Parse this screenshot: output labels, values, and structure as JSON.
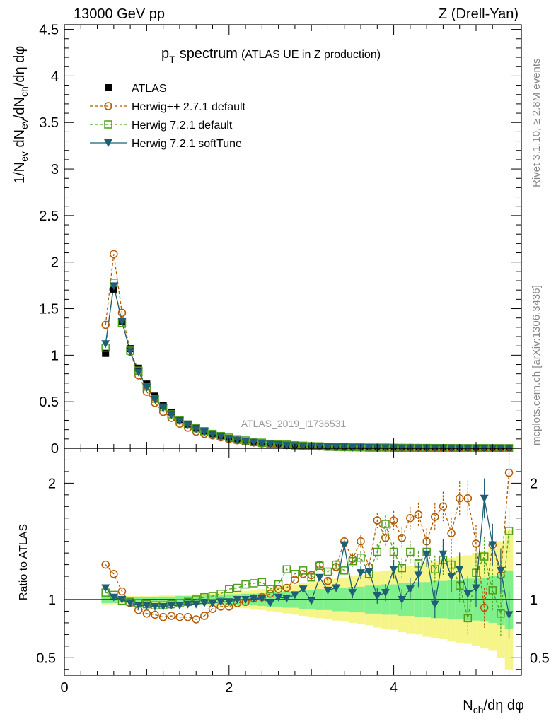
{
  "header": {
    "energy_label": "13000 GeV pp",
    "process_label": "Z (Drell-Yan)"
  },
  "side_labels": {
    "rivet": "Rivet 3.1.10, ≥ 2.8M events",
    "mcplots": "mcplots.cern.ch [arXiv:1306.3436]"
  },
  "analysis_label": "ATLAS_2019_I1736531",
  "colors": {
    "data": "#000000",
    "herwigpp": "#b35900",
    "herwig721": "#4d9f1a",
    "softtune": "#1f5f75",
    "band_inner": "#80f08c",
    "band_outer": "#f5f58a"
  },
  "chart_data": [
    {
      "type": "scatter",
      "panel": "main",
      "title": "p_T spectrum (ATLAS UE in Z production)",
      "title_main": "p",
      "title_sub": "T",
      "title_word": "spectrum",
      "title_small": "(ATLAS UE in Z production)",
      "xlabel": "N_ch/dη dφ",
      "ylabel": "1/N_ev dN_ev/dN_ch/dη dφ",
      "xlim": [
        0,
        5.55
      ],
      "ylim": [
        0,
        4.55
      ],
      "x_ticks": [
        0,
        2,
        4
      ],
      "y_ticks": [
        0,
        0.5,
        1,
        1.5,
        2,
        2.5,
        3,
        3.5,
        4,
        4.5
      ],
      "y_tick_labels": [
        "0",
        "0.5",
        "1",
        "1.5",
        "2",
        "2.5",
        "3",
        "3.5",
        "4",
        "4.5"
      ],
      "legend_position": "top-left",
      "legend": [
        "ATLAS",
        "Herwig++ 2.7.1 default",
        "Herwig 7.2.1 default",
        "Herwig 7.2.1 softTune"
      ],
      "x": [
        0.5,
        0.6,
        0.7,
        0.8,
        0.9,
        1.0,
        1.1,
        1.2,
        1.3,
        1.4,
        1.5,
        1.6,
        1.7,
        1.8,
        1.9,
        2.0,
        2.1,
        2.2,
        2.3,
        2.4,
        2.5,
        2.6,
        2.7,
        2.8,
        2.9,
        3.0,
        3.1,
        3.2,
        3.3,
        3.4,
        3.5,
        3.6,
        3.7,
        3.8,
        3.9,
        4.0,
        4.1,
        4.2,
        4.3,
        4.4,
        4.5,
        4.6,
        4.7,
        4.8,
        4.9,
        5.0,
        5.1,
        5.2,
        5.3,
        5.4
      ],
      "series": [
        {
          "name": "ATLAS",
          "marker": "filled-square",
          "values": [
            1.02,
            1.71,
            1.36,
            1.07,
            0.86,
            0.69,
            0.56,
            0.46,
            0.38,
            0.31,
            0.26,
            0.215,
            0.18,
            0.15,
            0.125,
            0.105,
            0.088,
            0.074,
            0.062,
            0.052,
            0.044,
            0.037,
            0.031,
            0.026,
            0.022,
            0.019,
            0.016,
            0.0135,
            0.0115,
            0.0098,
            0.0083,
            0.0071,
            0.006,
            0.0051,
            0.0044,
            0.0037,
            0.0032,
            0.0027,
            0.0023,
            0.002,
            0.0017,
            0.0014,
            0.0012,
            0.001,
            0.00088,
            0.00075,
            0.00064,
            0.00055,
            0.00047,
            0.0004
          ]
        },
        {
          "name": "Herwig++ 2.7.1 default",
          "marker": "open-circle",
          "ratio": [
            1.3,
            1.22,
            1.07,
            0.97,
            0.91,
            0.88,
            0.87,
            0.85,
            0.86,
            0.85,
            0.85,
            0.83,
            0.86,
            0.92,
            0.94,
            0.94,
            0.97,
            0.98,
            1.01,
            1.02,
            1.05,
            1.09,
            1.1,
            1.17,
            1.22,
            1.21,
            1.3,
            1.16,
            1.28,
            1.5,
            1.35,
            1.5,
            1.28,
            1.68,
            1.53,
            1.68,
            1.53,
            1.7,
            1.73,
            1.5,
            1.71,
            1.8,
            1.57,
            1.87,
            1.87,
            1.48,
            0.93,
            1.47,
            1.21,
            2.09
          ]
        },
        {
          "name": "Herwig 7.2.1 default",
          "marker": "open-square",
          "ratio": [
            1.06,
            1.04,
            0.99,
            0.98,
            0.97,
            0.96,
            0.95,
            0.95,
            0.96,
            0.97,
            0.98,
            1.0,
            1.02,
            1.03,
            1.05,
            1.09,
            1.1,
            1.13,
            1.14,
            1.15,
            1.09,
            1.13,
            1.26,
            1.22,
            1.25,
            1.19,
            1.29,
            1.24,
            1.3,
            1.25,
            1.33,
            1.36,
            1.22,
            1.41,
            1.65,
            1.41,
            1.27,
            1.41,
            1.31,
            1.41,
            1.26,
            1.34,
            1.3,
            1.12,
            0.84,
            1.23,
            1.37,
            1.08,
            0.88,
            1.59
          ]
        },
        {
          "name": "Herwig 7.2.1 softTune",
          "marker": "filled-triangle-down",
          "ratio": [
            1.1,
            1.02,
            1.0,
            0.97,
            0.95,
            0.95,
            0.94,
            0.94,
            0.95,
            0.95,
            0.96,
            0.96,
            0.97,
            0.97,
            0.98,
            0.98,
            1.0,
            1.0,
            1.01,
            1.01,
            0.97,
            1.02,
            1.01,
            1.04,
            1.09,
            0.99,
            1.19,
            1.08,
            1.1,
            1.47,
            1.06,
            1.23,
            1.24,
            1.03,
            1.06,
            1.26,
            1.0,
            1.09,
            1.21,
            1.39,
            0.96,
            1.39,
            1.2,
            1.26,
            1.05,
            1.1,
            1.87,
            1.47,
            1.25,
            0.87
          ]
        }
      ]
    },
    {
      "type": "scatter",
      "panel": "ratio",
      "ylabel": "Ratio to ATLAS",
      "xlabel": "N_ch/dη dφ",
      "xlim": [
        0,
        5.55
      ],
      "ylim": [
        0.35,
        2.3
      ],
      "y_ticks": [
        0.5,
        1,
        2
      ],
      "y_tick_labels": [
        "0.5",
        "1",
        "2"
      ],
      "reference_line": 1.0,
      "inner_band_half_width": [
        0.03,
        0.03,
        0.025,
        0.02,
        0.02,
        0.02,
        0.02,
        0.025,
        0.025,
        0.03,
        0.03,
        0.035,
        0.035,
        0.04,
        0.04,
        0.045,
        0.045,
        0.05,
        0.05,
        0.055,
        0.06,
        0.06,
        0.07,
        0.07,
        0.08,
        0.08,
        0.09,
        0.09,
        0.1,
        0.1,
        0.11,
        0.11,
        0.12,
        0.12,
        0.13,
        0.13,
        0.14,
        0.14,
        0.15,
        0.15,
        0.16,
        0.16,
        0.17,
        0.17,
        0.18,
        0.18,
        0.19,
        0.2,
        0.22,
        0.25
      ],
      "outer_band_half_width": [
        0.04,
        0.04,
        0.035,
        0.03,
        0.03,
        0.03,
        0.03,
        0.035,
        0.035,
        0.04,
        0.04,
        0.045,
        0.05,
        0.055,
        0.06,
        0.065,
        0.07,
        0.075,
        0.08,
        0.09,
        0.1,
        0.11,
        0.12,
        0.13,
        0.14,
        0.15,
        0.16,
        0.17,
        0.18,
        0.19,
        0.2,
        0.21,
        0.22,
        0.24,
        0.25,
        0.26,
        0.28,
        0.29,
        0.3,
        0.32,
        0.33,
        0.34,
        0.36,
        0.37,
        0.38,
        0.4,
        0.42,
        0.44,
        0.5,
        0.6
      ]
    }
  ]
}
